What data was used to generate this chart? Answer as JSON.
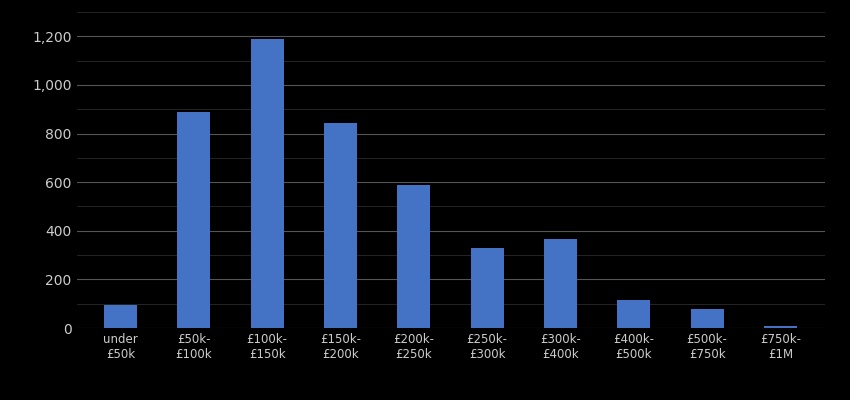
{
  "categories": [
    "under\n£50k",
    "£50k-\n£100k",
    "£100k-\n£150k",
    "£150k-\n£200k",
    "£200k-\n£250k",
    "£250k-\n£300k",
    "£300k-\n£400k",
    "£400k-\n£500k",
    "£500k-\n£750k",
    "£750k-\n£1M"
  ],
  "values": [
    95,
    890,
    1190,
    845,
    590,
    330,
    365,
    115,
    80,
    10
  ],
  "bar_color": "#4472C4",
  "background_color": "#000000",
  "text_color": "#cccccc",
  "major_grid_color": "#555555",
  "minor_grid_color": "#333333",
  "ylim": [
    0,
    1300
  ],
  "yticks_major": [
    0,
    200,
    400,
    600,
    800,
    1000,
    1200
  ],
  "bar_width": 0.45,
  "xlabel_fontsize": 8.5,
  "tick_fontsize": 10
}
